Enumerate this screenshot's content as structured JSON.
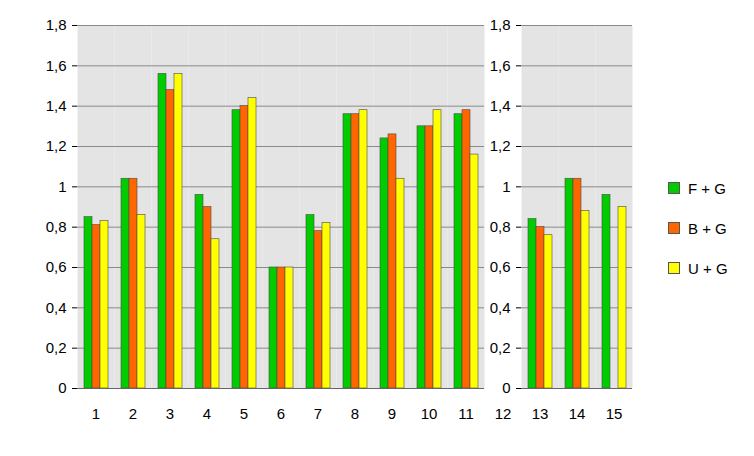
{
  "chart_data": {
    "type": "bar",
    "categories": [
      "1",
      "2",
      "3",
      "4",
      "5",
      "6",
      "7",
      "8",
      "9",
      "10",
      "11",
      "12",
      "13",
      "14",
      "15"
    ],
    "series": [
      {
        "name": "F + G",
        "color": "#00cc00",
        "values": [
          0.85,
          1.04,
          1.56,
          0.96,
          1.38,
          0.6,
          0.86,
          1.36,
          1.24,
          1.3,
          1.36,
          null,
          0.84,
          1.04,
          0.96
        ]
      },
      {
        "name": "B + G",
        "color": "#ff6600",
        "values": [
          0.81,
          1.04,
          1.48,
          0.9,
          1.4,
          0.6,
          0.78,
          1.36,
          1.26,
          1.3,
          1.38,
          null,
          0.8,
          1.04,
          null
        ]
      },
      {
        "name": "U + G",
        "color": "#ffff00",
        "values": [
          0.83,
          0.86,
          1.56,
          0.74,
          1.44,
          0.6,
          0.82,
          1.38,
          1.04,
          1.38,
          1.16,
          null,
          0.76,
          0.88,
          0.9
        ]
      }
    ],
    "ylim": [
      0,
      1.8
    ],
    "yticks": [
      0,
      {
        "value": 0.2,
        "label": "0,2"
      },
      {
        "value": 0.4,
        "label": "0,4"
      },
      {
        "value": 0.6,
        "label": "0,6"
      },
      {
        "value": 0.8,
        "label": "0,8"
      },
      1,
      {
        "value": 1.2,
        "label": "1,2"
      },
      {
        "value": 1.4,
        "label": "1,4"
      },
      {
        "value": 1.6,
        "label": "1,6"
      },
      {
        "value": 1.8,
        "label": "1,8"
      }
    ],
    "grid": true,
    "legend": "right"
  }
}
